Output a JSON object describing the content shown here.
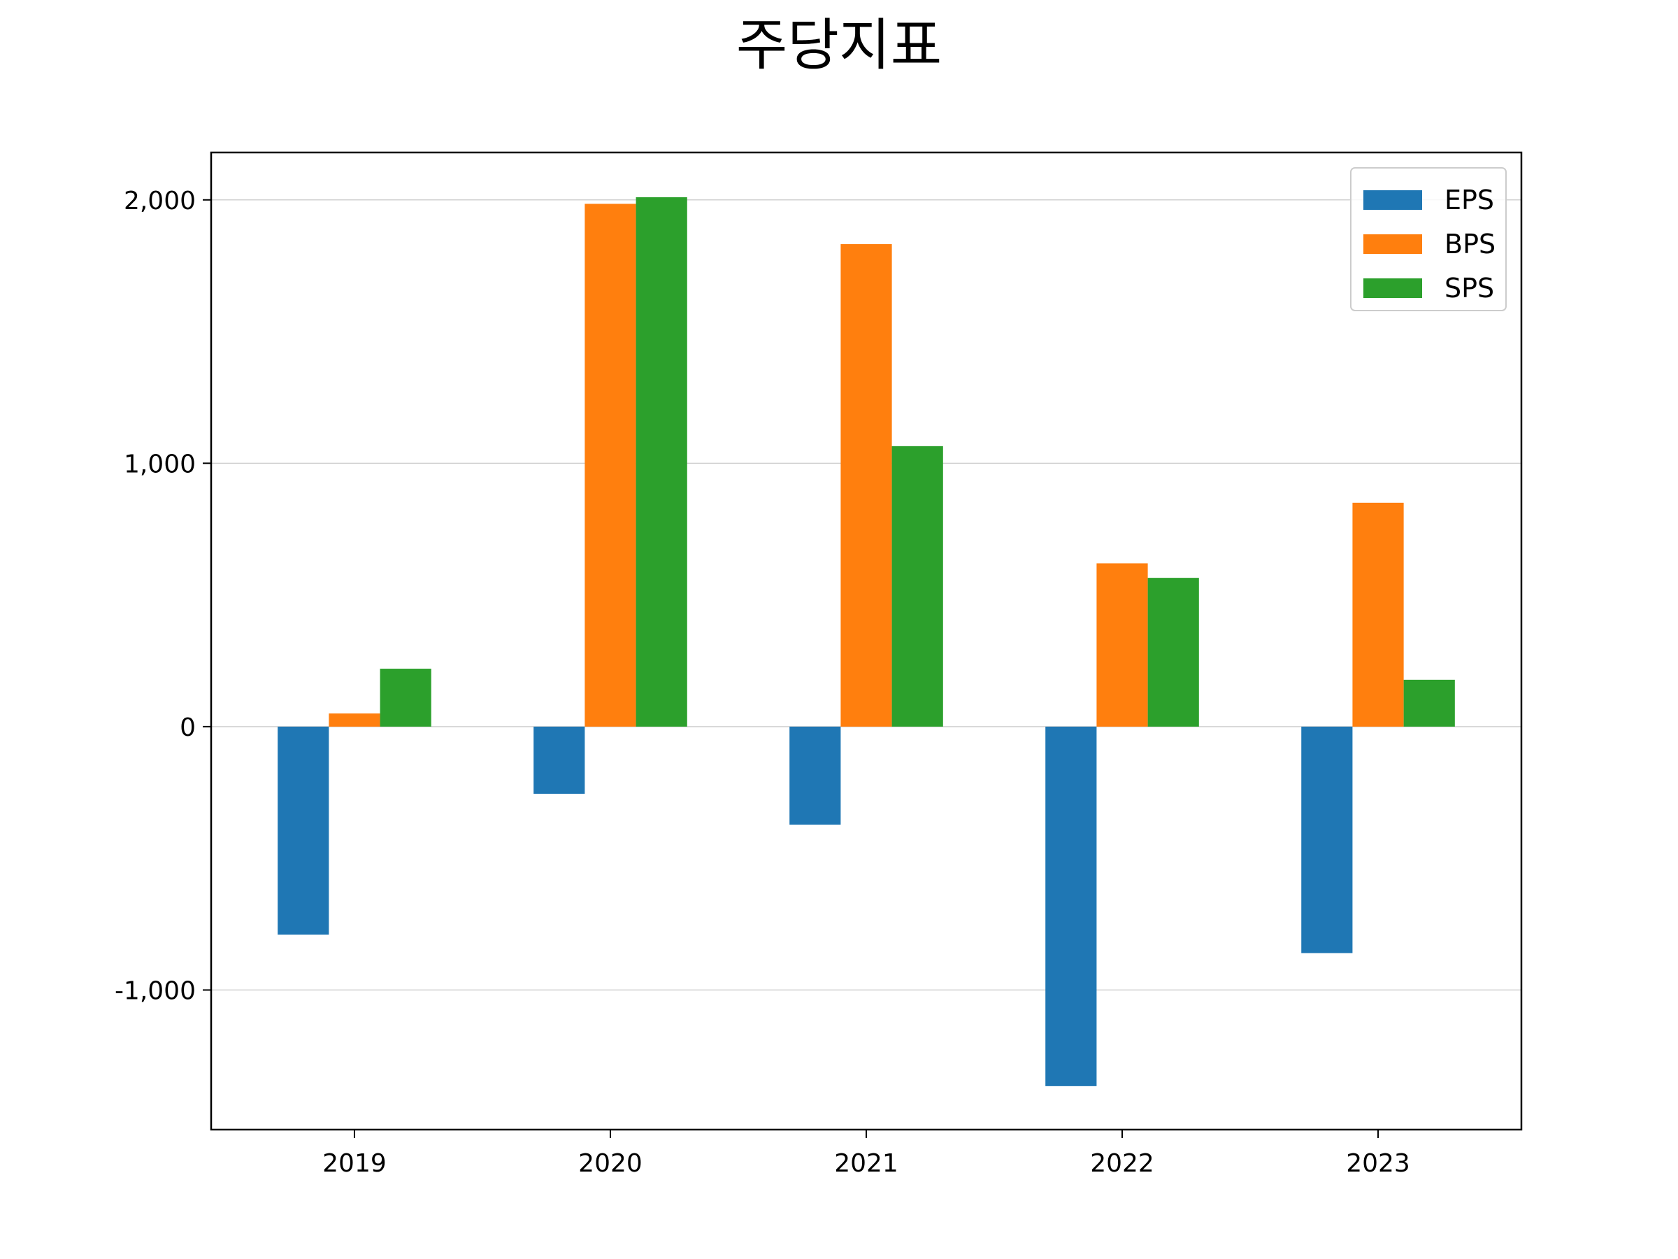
{
  "chart_data": {
    "type": "bar",
    "title": "주당지표",
    "xlabel": "",
    "ylabel": "",
    "categories": [
      "2019",
      "2020",
      "2021",
      "2022",
      "2023"
    ],
    "series": [
      {
        "name": "EPS",
        "color": "#1f77b4",
        "values": [
          -790,
          -255,
          -372,
          -1365,
          -860
        ]
      },
      {
        "name": "BPS",
        "color": "#ff7f0e",
        "values": [
          50,
          1985,
          1832,
          620,
          850
        ]
      },
      {
        "name": "SPS",
        "color": "#2ca02c",
        "values": [
          220,
          2010,
          1065,
          565,
          178
        ]
      }
    ],
    "ylim": [
      -1530,
      2180
    ],
    "yticks": [
      {
        "value": -1000,
        "label": "-1,000"
      },
      {
        "value": 0,
        "label": "0"
      },
      {
        "value": 1000,
        "label": "1,000"
      },
      {
        "value": 2000,
        "label": "2,000"
      }
    ],
    "grid": "y",
    "legend_position": "top-right"
  }
}
